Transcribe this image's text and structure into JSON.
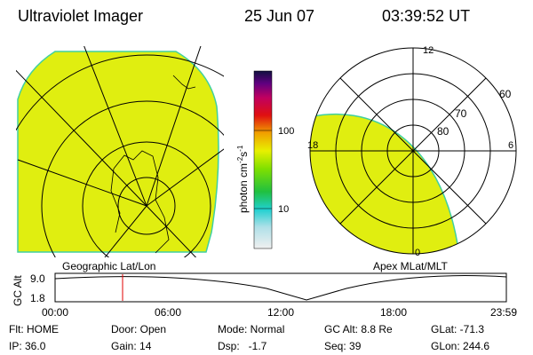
{
  "header": {
    "instrument": "Ultraviolet Imager",
    "date": "25 Jun 07",
    "time": "03:39:52 UT"
  },
  "colorbar": {
    "label": [
      "photon cm",
      "-2",
      "s",
      "-1"
    ],
    "ticks": [
      "100",
      "10"
    ]
  },
  "left_panel": {
    "caption": "Geographic Lat/Lon"
  },
  "right_panel": {
    "caption": "Apex MLat/MLT",
    "mlt_labels": [
      "12",
      "18",
      "6",
      "0"
    ],
    "mlat_labels": [
      "60",
      "70",
      "80"
    ]
  },
  "timeline": {
    "ylabel": "GC Alt",
    "yticks": [
      "9.0",
      "1.8"
    ],
    "xticks": [
      "00:00",
      "06:00",
      "12:00",
      "18:00",
      "23:59"
    ]
  },
  "status": {
    "rows": [
      [
        "Flt: HOME",
        "Door: Open",
        "Mode: Normal",
        "GC Alt: 8.8 Re",
        "GLat: -71.3"
      ],
      [
        "IP: 36.0",
        "Gain: 14",
        "Dsp:   -1.7",
        "Seq: 39",
        "GLon: 244.6"
      ]
    ]
  }
}
